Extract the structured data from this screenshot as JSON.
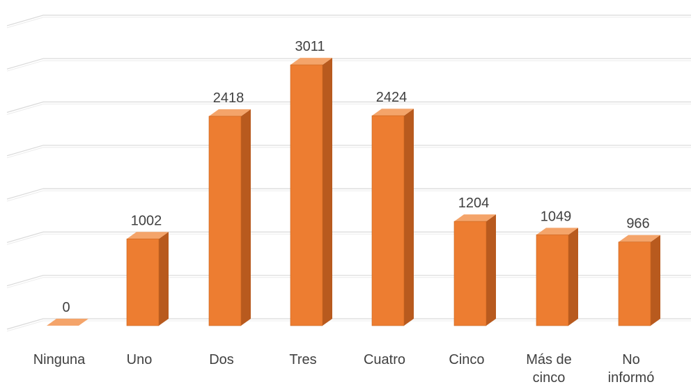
{
  "chart_data": {
    "type": "bar",
    "categories": [
      "Ninguna",
      "Uno",
      "Dos",
      "Tres",
      "Cuatro",
      "Cinco",
      "Más de cinco",
      "No informó"
    ],
    "category_lines": [
      [
        "Ninguna"
      ],
      [
        "Uno"
      ],
      [
        "Dos"
      ],
      [
        "Tres"
      ],
      [
        "Cuatro"
      ],
      [
        "Cinco"
      ],
      [
        "Más de",
        "cinco"
      ],
      [
        "No",
        "informó"
      ]
    ],
    "values": [
      0,
      1002,
      2418,
      3011,
      2424,
      1204,
      1049,
      966
    ],
    "title": "",
    "xlabel": "",
    "ylabel": "",
    "ylim": [
      0,
      3500
    ],
    "grid": true,
    "legend": "none",
    "style": "3d-column"
  },
  "colors": {
    "bar_front": "#ED7D31",
    "bar_side": "#B85A1E",
    "bar_top": "#F4A46A",
    "bar_edge": "#C9641F",
    "gridline": "#d9d9d9",
    "label_text": "#404040"
  }
}
